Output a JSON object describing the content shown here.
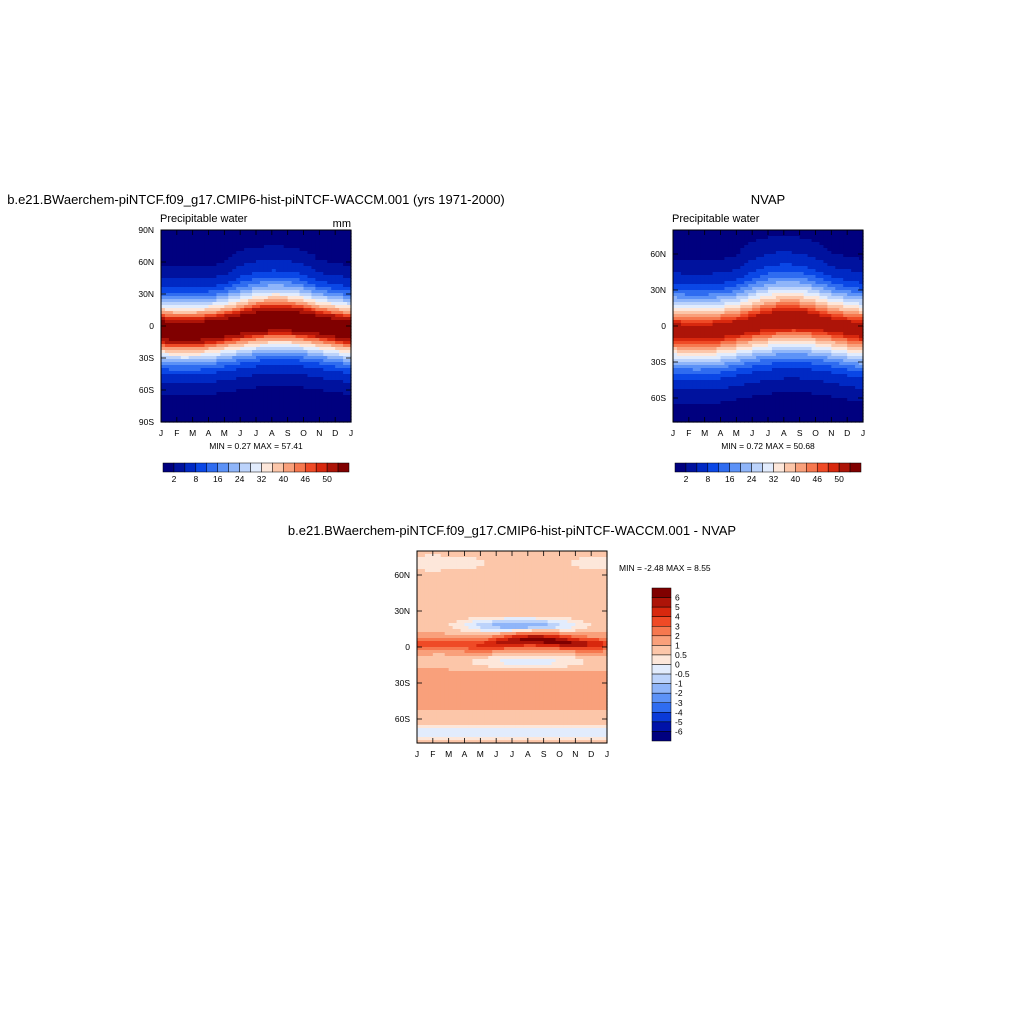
{
  "figure": {
    "palette": [
      "#00007f",
      "#00129e",
      "#0029c4",
      "#0a47e6",
      "#2f6cf0",
      "#5c92f7",
      "#8fb5f9",
      "#bcd3fb",
      "#e2ecfd",
      "#fde7da",
      "#fcc6a9",
      "#f9a07b",
      "#f6784f",
      "#ef4a26",
      "#d8280e",
      "#ad1408",
      "#800000"
    ]
  },
  "chart_data": [
    {
      "type": "heatmap",
      "title": "b.e21.BWaerchem-piNTCF.f09_g17.CMIP6-hist-piNTCF-WACCM.001 (yrs 1971-2000)",
      "subtitle_left": "Precipitable water",
      "subtitle_right": "mm",
      "x_ticks": [
        "J",
        "F",
        "M",
        "A",
        "M",
        "J",
        "J",
        "A",
        "S",
        "O",
        "N",
        "D",
        "J"
      ],
      "y_ticks": [
        "90N",
        "60N",
        "30N",
        "0",
        "30S",
        "60S",
        "90S"
      ],
      "ylim": [
        -90,
        90
      ],
      "stats": "MIN =   0.27 MAX =  57.41",
      "colorbar_labels": [
        "2",
        "8",
        "16",
        "24",
        "32",
        "40",
        "46",
        "50"
      ],
      "colorbar_orientation": "horizontal",
      "field": {
        "kind": "pw",
        "peak": 57.41,
        "min": 0.27
      }
    },
    {
      "type": "heatmap",
      "title": "NVAP",
      "subtitle_left": "Precipitable water",
      "subtitle_right": "",
      "x_ticks": [
        "J",
        "F",
        "M",
        "A",
        "M",
        "J",
        "J",
        "A",
        "S",
        "O",
        "N",
        "D",
        "J"
      ],
      "y_ticks": [
        "60N",
        "30N",
        "0",
        "30S",
        "60S"
      ],
      "ylim": [
        -80,
        80
      ],
      "stats": "MIN =   0.72 MAX =  50.68",
      "colorbar_labels": [
        "2",
        "8",
        "16",
        "24",
        "32",
        "40",
        "46",
        "50"
      ],
      "colorbar_orientation": "horizontal",
      "field": {
        "kind": "pw",
        "peak": 50.68,
        "min": 0.72
      }
    },
    {
      "type": "heatmap",
      "title": "b.e21.BWaerchem-piNTCF.f09_g17.CMIP6-hist-piNTCF-WACCM.001 - NVAP",
      "subtitle_left": "",
      "subtitle_right": "",
      "x_ticks": [
        "J",
        "F",
        "M",
        "A",
        "M",
        "J",
        "J",
        "A",
        "S",
        "O",
        "N",
        "D",
        "J"
      ],
      "y_ticks": [
        "60N",
        "30N",
        "0",
        "30S",
        "60S"
      ],
      "ylim": [
        -80,
        80
      ],
      "stats": "MIN =  -2.48 MAX =   8.55",
      "colorbar_labels": [
        "6",
        "5",
        "4",
        "3",
        "2",
        "1",
        "0.5",
        "0",
        "-0.5",
        "-1",
        "-2",
        "-3",
        "-4",
        "-5",
        "-6"
      ],
      "colorbar_orientation": "vertical",
      "field": {
        "kind": "diff",
        "min": -2.48,
        "max": 8.55
      }
    }
  ]
}
